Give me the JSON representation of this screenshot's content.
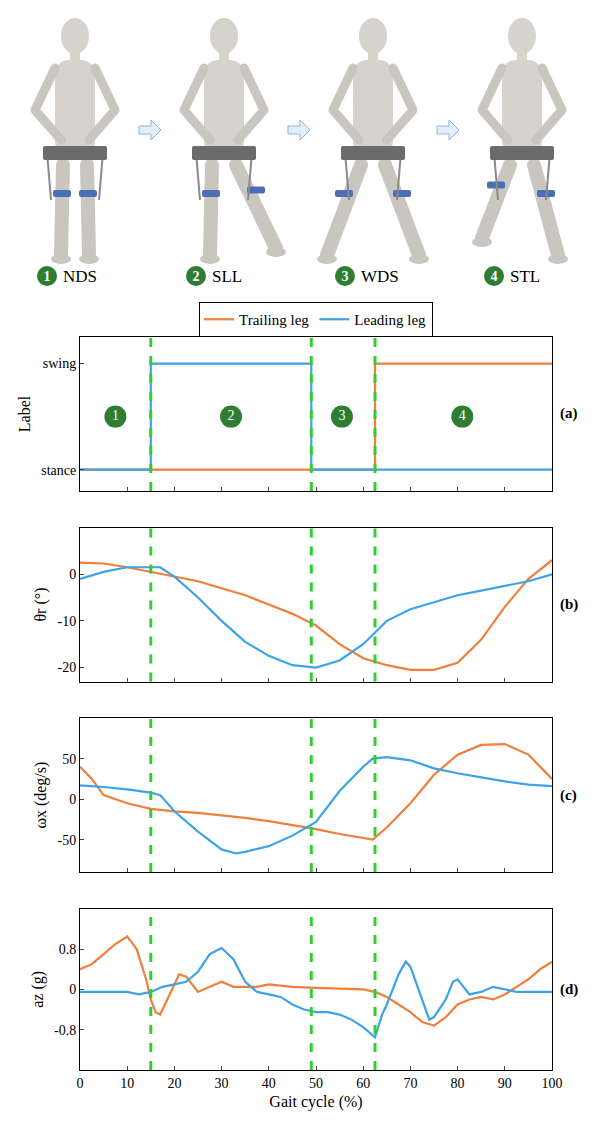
{
  "header": {
    "phases": [
      {
        "number": "1",
        "label": "NDS"
      },
      {
        "number": "2",
        "label": "SLL"
      },
      {
        "number": "3",
        "label": "WDS"
      },
      {
        "number": "4",
        "label": "STL"
      }
    ]
  },
  "chart_data": [
    {
      "type": "line",
      "panel_label": "(a)",
      "y_label": "Label",
      "xlim": [
        0,
        100
      ],
      "xticks": [
        0,
        10,
        20,
        30,
        40,
        50,
        60,
        70,
        80,
        90,
        100
      ],
      "ylim": [
        -0.2,
        1.25
      ],
      "yticks": [
        {
          "value": 0,
          "label": "stance"
        },
        {
          "value": 1,
          "label": "swing"
        }
      ],
      "grid": false,
      "legend": "top",
      "tick_labels": "y",
      "phase_boundaries": [
        15,
        49,
        62.5
      ],
      "annotations": [
        {
          "x": 7.5,
          "y": 0.5,
          "text": "1"
        },
        {
          "x": 32,
          "y": 0.5,
          "text": "2"
        },
        {
          "x": 55.5,
          "y": 0.5,
          "text": "3"
        },
        {
          "x": 81,
          "y": 0.5,
          "text": "4"
        }
      ],
      "series": [
        {
          "name": "Trailing leg",
          "color": "#f07f3c",
          "x": [
            0,
            62.5,
            62.5,
            100
          ],
          "values": [
            0,
            0,
            1,
            1
          ]
        },
        {
          "name": "Leading leg",
          "color": "#3ea2e6",
          "x": [
            0,
            15,
            15,
            49,
            49,
            100
          ],
          "values": [
            0,
            0,
            1,
            1,
            0,
            0
          ]
        }
      ]
    },
    {
      "type": "line",
      "panel_label": "(b)",
      "y_label": "θr (°)",
      "xlim": [
        0,
        100
      ],
      "xticks": [
        0,
        10,
        20,
        30,
        40,
        50,
        60,
        70,
        80,
        90,
        100
      ],
      "ylim": [
        -23,
        10
      ],
      "yticks": [
        -20,
        -10,
        0
      ],
      "grid": false,
      "tick_labels": "y",
      "phase_boundaries": [
        15,
        49,
        62.5
      ],
      "series": [
        {
          "name": "Trailing leg",
          "color": "#f07f3c",
          "x": [
            0,
            5,
            10,
            15,
            20,
            25,
            30,
            35,
            40,
            45,
            50,
            55,
            60,
            65,
            70,
            75,
            80,
            85,
            90,
            95,
            100
          ],
          "values": [
            2.5,
            2.3,
            1.5,
            0.5,
            -0.5,
            -1.5,
            -3,
            -4.5,
            -6.5,
            -8.5,
            -11,
            -15,
            -18,
            -19.5,
            -20.5,
            -20.5,
            -19,
            -14,
            -7,
            -1,
            3
          ]
        },
        {
          "name": "Leading leg",
          "color": "#3ea2e6",
          "x": [
            0,
            5,
            10,
            15,
            17,
            20,
            25,
            30,
            35,
            40,
            45,
            50,
            55,
            60,
            65,
            70,
            75,
            80,
            85,
            90,
            95,
            100
          ],
          "values": [
            -1,
            0.5,
            1.5,
            1.5,
            1.5,
            -0.5,
            -5,
            -10,
            -14.5,
            -17.5,
            -19.5,
            -20,
            -18.5,
            -15,
            -10,
            -7.5,
            -6,
            -4.5,
            -3.5,
            -2.5,
            -1.5,
            0
          ]
        }
      ]
    },
    {
      "type": "line",
      "panel_label": "(c)",
      "y_label": "ωx (deg/s)",
      "xlim": [
        0,
        100
      ],
      "xticks": [
        0,
        10,
        20,
        30,
        40,
        50,
        60,
        70,
        80,
        90,
        100
      ],
      "ylim": [
        -90,
        100
      ],
      "yticks": [
        -50,
        0,
        50
      ],
      "grid": false,
      "tick_labels": "y",
      "phase_boundaries": [
        15,
        49,
        62.5
      ],
      "series": [
        {
          "name": "Trailing leg",
          "color": "#f07f3c",
          "x": [
            0,
            2.5,
            5,
            10,
            15,
            20,
            25,
            30,
            33,
            35,
            40,
            45,
            50,
            55,
            60,
            62,
            65,
            70,
            75,
            80,
            85,
            90,
            95,
            100
          ],
          "values": [
            40,
            25,
            5,
            -5,
            -12,
            -15,
            -17,
            -20,
            -21.5,
            -23,
            -27,
            -32,
            -37,
            -43,
            -48,
            -50,
            -35,
            -5,
            30,
            55,
            67,
            68,
            55,
            25
          ]
        },
        {
          "name": "Leading leg",
          "color": "#3ea2e6",
          "x": [
            0,
            5,
            10,
            15,
            17,
            20,
            25,
            30,
            33,
            35,
            40,
            45,
            50,
            55,
            60,
            62,
            65,
            70,
            75,
            80,
            85,
            90,
            95,
            100
          ],
          "values": [
            17,
            15,
            12,
            8,
            5,
            -15,
            -40,
            -62,
            -67,
            -65,
            -58,
            -45,
            -28,
            10,
            40,
            50,
            52,
            48,
            38,
            32,
            27,
            22,
            18,
            16
          ]
        }
      ]
    },
    {
      "type": "line",
      "panel_label": "(d)",
      "y_label": "az (g)",
      "x_label": "Gait cycle (%)",
      "xlim": [
        0,
        100
      ],
      "xticks": [
        0,
        10,
        20,
        30,
        40,
        50,
        60,
        70,
        80,
        90,
        100
      ],
      "ylim": [
        -1.6,
        1.6
      ],
      "yticks": [
        -0.8,
        0,
        0.8
      ],
      "grid": false,
      "tick_labels": true,
      "phase_boundaries": [
        15,
        49,
        62.5
      ],
      "series": [
        {
          "name": "Trailing leg",
          "color": "#f07f3c",
          "x": [
            0,
            2.5,
            5,
            7.5,
            10,
            12,
            14,
            15,
            16,
            17,
            19,
            21,
            22.5,
            25,
            27.5,
            30,
            32.5,
            35,
            37.5,
            40,
            45,
            50,
            55,
            60,
            62.5,
            65,
            67.5,
            70,
            72.5,
            75,
            77.5,
            80,
            82.5,
            85,
            87.5,
            90,
            92.5,
            95,
            97.5,
            100
          ],
          "values": [
            0.4,
            0.5,
            0.7,
            0.9,
            1.05,
            0.8,
            0.2,
            -0.2,
            -0.45,
            -0.5,
            -0.1,
            0.3,
            0.25,
            -0.05,
            0.05,
            0.15,
            0.05,
            0.05,
            0.05,
            0.1,
            0.05,
            0.03,
            0.02,
            0,
            -0.05,
            -0.15,
            -0.3,
            -0.45,
            -0.65,
            -0.72,
            -0.55,
            -0.3,
            -0.2,
            -0.15,
            -0.2,
            -0.1,
            0.05,
            0.2,
            0.4,
            0.55
          ]
        },
        {
          "name": "Leading leg",
          "color": "#3ea2e6",
          "x": [
            0,
            5,
            10,
            12.5,
            15,
            17.5,
            20,
            22.5,
            25,
            27.5,
            30,
            32.5,
            35,
            37.5,
            40,
            42.5,
            45,
            47.5,
            50,
            52.5,
            55,
            57.5,
            60,
            62.5,
            64,
            65,
            67.5,
            69,
            70,
            72.5,
            74,
            75,
            77.5,
            79,
            80,
            82.5,
            85,
            87.5,
            90,
            92.5,
            95,
            100
          ],
          "values": [
            -0.05,
            -0.05,
            -0.05,
            -0.1,
            -0.05,
            0.05,
            0.1,
            0.15,
            0.35,
            0.7,
            0.82,
            0.6,
            0.15,
            -0.05,
            -0.1,
            -0.15,
            -0.3,
            -0.4,
            -0.45,
            -0.45,
            -0.5,
            -0.6,
            -0.75,
            -0.95,
            -0.5,
            -0.3,
            0.3,
            0.55,
            0.45,
            -0.2,
            -0.6,
            -0.55,
            -0.2,
            0.15,
            0.2,
            -0.1,
            -0.05,
            0.05,
            0,
            -0.05,
            -0.05,
            -0.05
          ]
        }
      ]
    }
  ]
}
